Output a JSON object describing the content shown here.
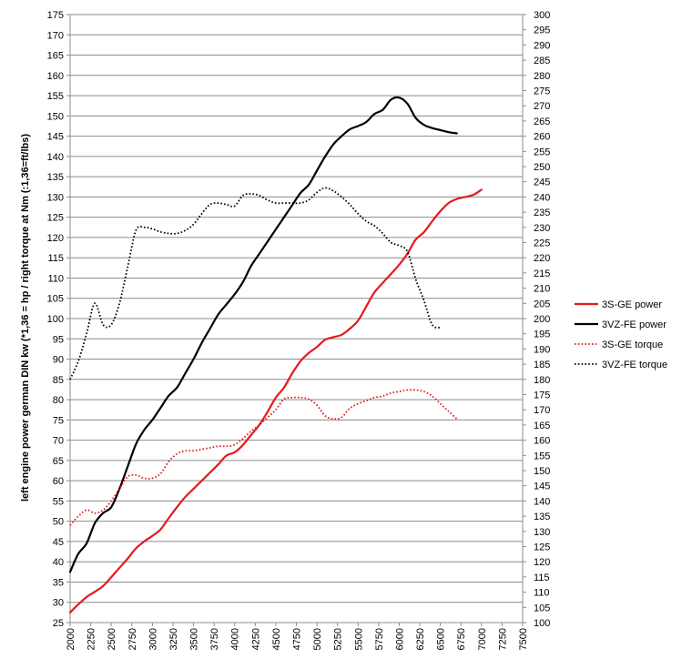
{
  "chart_data": {
    "type": "line",
    "title": "",
    "xlabel": "",
    "ylabel": "left engine power  german DIN kw (*1,36 = hp / right torque at Nm (:1,36=ft/lbs)",
    "x_ticks": [
      2000,
      2250,
      2500,
      2750,
      3000,
      3250,
      3500,
      3750,
      4000,
      4250,
      4500,
      4750,
      5000,
      5250,
      5500,
      5750,
      6000,
      6250,
      6500,
      6750,
      7000,
      7250,
      7500
    ],
    "xlim": [
      2000,
      7500
    ],
    "ylim_left": [
      25,
      175
    ],
    "yticks_left_step": 5,
    "ylim_right": [
      100,
      300
    ],
    "yticks_right_step": 5,
    "grid": "horizontal",
    "legend_position": "right",
    "series": [
      {
        "name": "3S-GE power",
        "axis": "left",
        "color": "#e31a1c",
        "style": "solid",
        "points": [
          [
            2000,
            27.5
          ],
          [
            2100,
            29.5
          ],
          [
            2200,
            31.3
          ],
          [
            2300,
            32.6
          ],
          [
            2400,
            34
          ],
          [
            2500,
            36.2
          ],
          [
            2600,
            38.5
          ],
          [
            2700,
            40.8
          ],
          [
            2800,
            43.3
          ],
          [
            2900,
            45
          ],
          [
            3000,
            46.4
          ],
          [
            3100,
            48
          ],
          [
            3200,
            50.8
          ],
          [
            3300,
            53.5
          ],
          [
            3400,
            56
          ],
          [
            3500,
            58
          ],
          [
            3600,
            60
          ],
          [
            3700,
            62
          ],
          [
            3800,
            64
          ],
          [
            3900,
            66.2
          ],
          [
            4000,
            67
          ],
          [
            4100,
            68.8
          ],
          [
            4200,
            71.3
          ],
          [
            4300,
            73.8
          ],
          [
            4400,
            77
          ],
          [
            4500,
            80.5
          ],
          [
            4600,
            83
          ],
          [
            4700,
            86.5
          ],
          [
            4800,
            89.5
          ],
          [
            4900,
            91.5
          ],
          [
            5000,
            93
          ],
          [
            5100,
            94.8
          ],
          [
            5200,
            95.4
          ],
          [
            5300,
            96
          ],
          [
            5400,
            97.5
          ],
          [
            5500,
            99.5
          ],
          [
            5600,
            103
          ],
          [
            5700,
            106.5
          ],
          [
            5800,
            108.8
          ],
          [
            5900,
            111
          ],
          [
            6000,
            113.3
          ],
          [
            6100,
            116
          ],
          [
            6200,
            119.5
          ],
          [
            6300,
            121.3
          ],
          [
            6400,
            124
          ],
          [
            6500,
            126.5
          ],
          [
            6600,
            128.5
          ],
          [
            6700,
            129.5
          ],
          [
            6800,
            130
          ],
          [
            6900,
            130.5
          ],
          [
            7000,
            131.8
          ]
        ]
      },
      {
        "name": "3VZ-FE power",
        "axis": "left",
        "color": "#000000",
        "style": "solid",
        "points": [
          [
            2000,
            37.5
          ],
          [
            2100,
            42
          ],
          [
            2200,
            44.5
          ],
          [
            2300,
            49.5
          ],
          [
            2400,
            52
          ],
          [
            2500,
            53.5
          ],
          [
            2600,
            58
          ],
          [
            2700,
            63.5
          ],
          [
            2800,
            69
          ],
          [
            2900,
            72.5
          ],
          [
            3000,
            75
          ],
          [
            3100,
            78
          ],
          [
            3200,
            81
          ],
          [
            3300,
            83
          ],
          [
            3400,
            86.5
          ],
          [
            3500,
            90
          ],
          [
            3600,
            94
          ],
          [
            3700,
            97.5
          ],
          [
            3800,
            101
          ],
          [
            3900,
            103.5
          ],
          [
            4000,
            106
          ],
          [
            4100,
            109
          ],
          [
            4200,
            113
          ],
          [
            4300,
            116
          ],
          [
            4400,
            119
          ],
          [
            4500,
            122
          ],
          [
            4600,
            125
          ],
          [
            4700,
            128
          ],
          [
            4800,
            131
          ],
          [
            4900,
            133
          ],
          [
            5000,
            136.5
          ],
          [
            5100,
            140
          ],
          [
            5200,
            143
          ],
          [
            5300,
            145
          ],
          [
            5400,
            146.7
          ],
          [
            5500,
            147.5
          ],
          [
            5600,
            148.5
          ],
          [
            5700,
            150.5
          ],
          [
            5800,
            151.5
          ],
          [
            5900,
            154
          ],
          [
            6000,
            154.5
          ],
          [
            6100,
            153
          ],
          [
            6200,
            149.5
          ],
          [
            6300,
            147.8
          ],
          [
            6400,
            147
          ],
          [
            6500,
            146.5
          ],
          [
            6600,
            146
          ],
          [
            6700,
            145.7
          ]
        ]
      },
      {
        "name": "3S-GE torque",
        "axis": "right",
        "color": "#e31a1c",
        "style": "dotted",
        "points": [
          [
            2000,
            132
          ],
          [
            2100,
            135
          ],
          [
            2200,
            137
          ],
          [
            2300,
            136
          ],
          [
            2400,
            137
          ],
          [
            2500,
            140
          ],
          [
            2600,
            144
          ],
          [
            2700,
            148
          ],
          [
            2800,
            148.5
          ],
          [
            2900,
            147.5
          ],
          [
            3000,
            147.5
          ],
          [
            3100,
            149
          ],
          [
            3200,
            153
          ],
          [
            3300,
            155.5
          ],
          [
            3400,
            156.5
          ],
          [
            3500,
            156.5
          ],
          [
            3600,
            157
          ],
          [
            3700,
            157.5
          ],
          [
            3800,
            158
          ],
          [
            3900,
            158
          ],
          [
            4000,
            158.5
          ],
          [
            4100,
            160.5
          ],
          [
            4200,
            163
          ],
          [
            4300,
            165
          ],
          [
            4400,
            167.5
          ],
          [
            4500,
            170
          ],
          [
            4600,
            173.5
          ],
          [
            4700,
            174
          ],
          [
            4800,
            174
          ],
          [
            4900,
            173.5
          ],
          [
            5000,
            171.5
          ],
          [
            5100,
            168
          ],
          [
            5200,
            167
          ],
          [
            5300,
            167.5
          ],
          [
            5400,
            170.5
          ],
          [
            5500,
            172
          ],
          [
            5600,
            173
          ],
          [
            5700,
            174
          ],
          [
            5800,
            174.5
          ],
          [
            5900,
            175.5
          ],
          [
            6000,
            176
          ],
          [
            6100,
            176.5
          ],
          [
            6200,
            176.5
          ],
          [
            6300,
            176
          ],
          [
            6400,
            174.5
          ],
          [
            6500,
            172
          ],
          [
            6600,
            169.5
          ],
          [
            6700,
            167
          ]
        ]
      },
      {
        "name": "3VZ-FE torque",
        "axis": "right",
        "color": "#000000",
        "style": "dotted",
        "points": [
          [
            2000,
            180
          ],
          [
            2100,
            186
          ],
          [
            2200,
            195
          ],
          [
            2300,
            205
          ],
          [
            2400,
            198
          ],
          [
            2500,
            198
          ],
          [
            2600,
            205
          ],
          [
            2700,
            217
          ],
          [
            2800,
            229
          ],
          [
            2900,
            230
          ],
          [
            3000,
            229.5
          ],
          [
            3100,
            228.5
          ],
          [
            3200,
            228
          ],
          [
            3300,
            228
          ],
          [
            3400,
            229
          ],
          [
            3500,
            231
          ],
          [
            3600,
            234.5
          ],
          [
            3700,
            237.5
          ],
          [
            3800,
            238
          ],
          [
            3900,
            237.5
          ],
          [
            4000,
            237
          ],
          [
            4100,
            240.5
          ],
          [
            4200,
            241
          ],
          [
            4300,
            240.5
          ],
          [
            4400,
            239
          ],
          [
            4500,
            238
          ],
          [
            4600,
            238
          ],
          [
            4700,
            238
          ],
          [
            4800,
            238
          ],
          [
            4900,
            239
          ],
          [
            5000,
            241.5
          ],
          [
            5100,
            243
          ],
          [
            5200,
            242
          ],
          [
            5300,
            240
          ],
          [
            5400,
            237.5
          ],
          [
            5500,
            234.5
          ],
          [
            5600,
            232
          ],
          [
            5700,
            230.5
          ],
          [
            5800,
            228
          ],
          [
            5900,
            225
          ],
          [
            6000,
            224
          ],
          [
            6100,
            222
          ],
          [
            6200,
            213
          ],
          [
            6300,
            206
          ],
          [
            6400,
            198
          ],
          [
            6500,
            197
          ]
        ]
      }
    ]
  }
}
